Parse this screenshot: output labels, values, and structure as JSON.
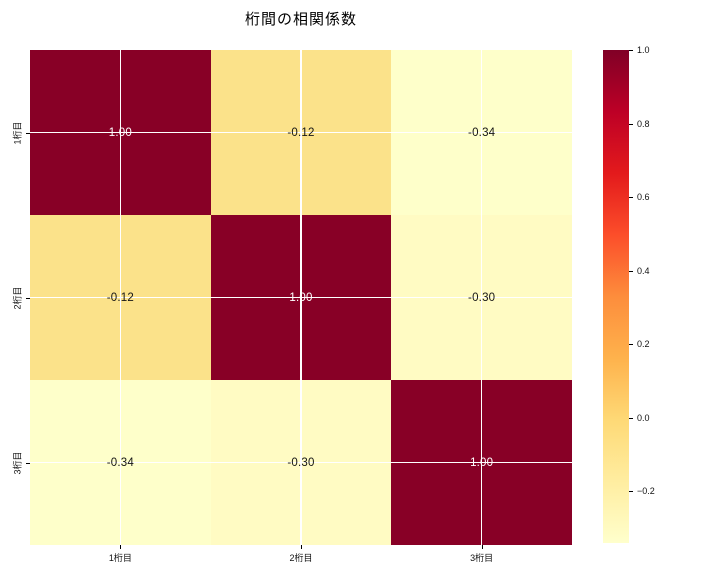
{
  "chart_data": {
    "type": "heatmap",
    "title": "桁間の相関係数",
    "x_categories": [
      "1桁目",
      "2桁目",
      "3桁目"
    ],
    "y_categories": [
      "1桁目",
      "2桁目",
      "3桁目"
    ],
    "matrix": [
      [
        1.0,
        -0.12,
        -0.34
      ],
      [
        -0.12,
        1.0,
        -0.3
      ],
      [
        -0.34,
        -0.3,
        1.0
      ]
    ],
    "annotations": [
      [
        "1.00",
        "-0.12",
        "-0.34"
      ],
      [
        "-0.12",
        "1.00",
        "-0.30"
      ],
      [
        "-0.34",
        "-0.30",
        "1.00"
      ]
    ],
    "cell_colors": [
      [
        "#880026",
        "#fbe28a",
        "#feffca"
      ],
      [
        "#fbe28a",
        "#880026",
        "#fffbc3"
      ],
      [
        "#feffca",
        "#fffbc3",
        "#880026"
      ]
    ],
    "colormap": "YlOrRd",
    "vmin": -0.34,
    "vmax": 1.0,
    "grid": true,
    "grid_color": "#ffffff",
    "legend_position": "right-colorbar",
    "colorbar_ticks": [
      1.0,
      0.8,
      0.6,
      0.4,
      0.2,
      0.0,
      -0.2
    ],
    "colorbar_tick_labels": [
      "1.0",
      "0.8",
      "0.6",
      "0.4",
      "0.2",
      "0.0",
      "−0.2"
    ],
    "annotation_color_dark_cell": "#ffffff",
    "annotation_color_light_cell": "#151515"
  }
}
